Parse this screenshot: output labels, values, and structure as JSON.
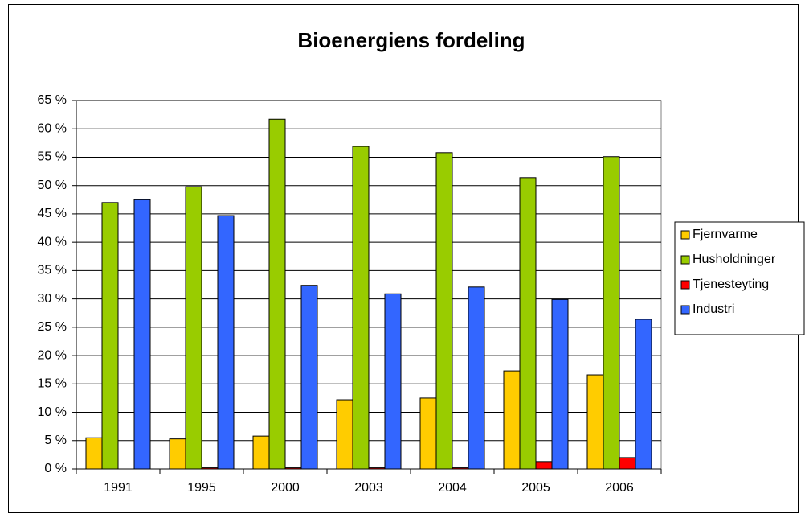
{
  "chart_data": {
    "type": "bar",
    "title": "Bioenergiens fordeling",
    "categories": [
      "1991",
      "1995",
      "2000",
      "2003",
      "2004",
      "2005",
      "2006"
    ],
    "series": [
      {
        "name": "Fjernvarme",
        "color": "#ffcc00",
        "values": [
          5.5,
          5.3,
          5.8,
          12.2,
          12.5,
          17.3,
          16.6
        ]
      },
      {
        "name": "Husholdninger",
        "color": "#99cc00",
        "values": [
          47.0,
          49.8,
          61.7,
          56.9,
          55.8,
          51.4,
          55.1
        ]
      },
      {
        "name": "Tjenesteyting",
        "color": "#ff0000",
        "values": [
          0,
          0.2,
          0.2,
          0.2,
          0.2,
          1.3,
          2.0
        ]
      },
      {
        "name": "Industri",
        "color": "#3366ff",
        "values": [
          47.5,
          44.7,
          32.4,
          30.9,
          32.1,
          29.9,
          26.4
        ]
      }
    ],
    "ylim": [
      0,
      65
    ],
    "yticks": [
      {
        "value": 0,
        "label": "0 %"
      },
      {
        "value": 5,
        "label": "5 %"
      },
      {
        "value": 10,
        "label": "10 %"
      },
      {
        "value": 15,
        "label": "15 %"
      },
      {
        "value": 20,
        "label": "20 %"
      },
      {
        "value": 25,
        "label": "25 %"
      },
      {
        "value": 30,
        "label": "30 %"
      },
      {
        "value": 35,
        "label": "35 %"
      },
      {
        "value": 40,
        "label": "40 %"
      },
      {
        "value": 45,
        "label": "45 %"
      },
      {
        "value": 50,
        "label": "50 %"
      },
      {
        "value": 55,
        "label": "55 %"
      },
      {
        "value": 60,
        "label": "60 %"
      },
      {
        "value": 65,
        "label": "65 %"
      }
    ],
    "grid": true,
    "legend": "right"
  }
}
